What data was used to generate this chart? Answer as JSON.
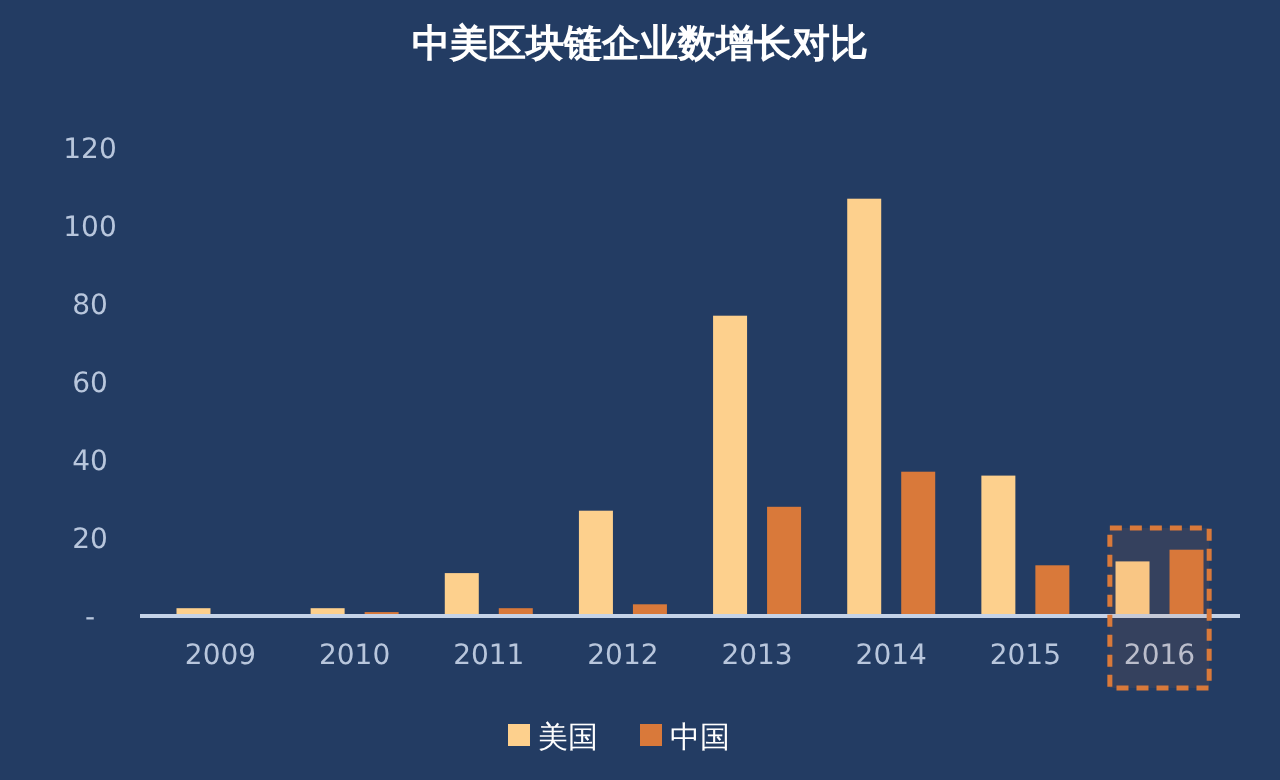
{
  "chart_data": {
    "type": "bar",
    "title": "中美区块链企业数增长对比",
    "categories": [
      "2009",
      "2010",
      "2011",
      "2012",
      "2013",
      "2014",
      "2015",
      "2016"
    ],
    "series": [
      {
        "name": "美国",
        "color": "#fdd08d",
        "values": [
          2,
          2,
          11,
          27,
          77,
          107,
          36,
          14
        ]
      },
      {
        "name": "中国",
        "color": "#d9793a",
        "values": [
          0,
          1,
          2,
          3,
          28,
          37,
          13,
          17
        ]
      }
    ],
    "ylim": [
      0,
      120
    ],
    "yticks": [
      {
        "value": 0,
        "label": "-"
      },
      20,
      40,
      60,
      80,
      100,
      120
    ],
    "grid": false,
    "legend": "bottom",
    "bands": [
      {
        "axis": "x",
        "from": "2016",
        "to": "2016",
        "color": "#d9793a"
      }
    ]
  }
}
